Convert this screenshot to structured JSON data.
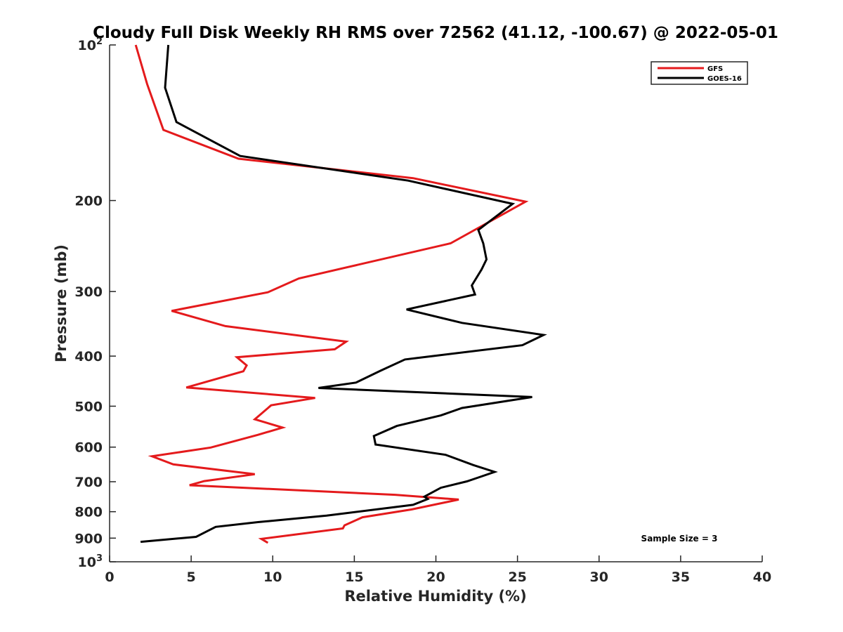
{
  "chart_data": {
    "type": "line",
    "title": "Cloudy Full Disk Weekly RH RMS over 72562 (41.12, -100.67) @ 2022-05-01",
    "xlabel": "Relative Humidity (%)",
    "ylabel": "Pressure (mb)",
    "xlim": [
      0,
      40
    ],
    "ylim": [
      100,
      1000
    ],
    "y_scale": "log",
    "y_reversed": true,
    "grid": false,
    "legend_position": "top-right",
    "x_ticks": [
      0,
      5,
      10,
      15,
      20,
      25,
      30,
      35,
      40
    ],
    "y_ticks": [
      {
        "value": 100,
        "base": "10",
        "exp": "2"
      },
      {
        "value": 200,
        "label": "200"
      },
      {
        "value": 300,
        "label": "300"
      },
      {
        "value": 400,
        "label": "400"
      },
      {
        "value": 500,
        "label": "500"
      },
      {
        "value": 600,
        "label": "600"
      },
      {
        "value": 700,
        "label": "700"
      },
      {
        "value": 800,
        "label": "800"
      },
      {
        "value": 900,
        "label": "900"
      },
      {
        "value": 1000,
        "base": "10",
        "exp": "3"
      }
    ],
    "series": [
      {
        "name": "GFS",
        "color": "#e41a1c",
        "x": [
          1.6,
          2.3,
          3.3,
          7.9,
          18.6,
          25.5,
          20.9,
          11.6,
          9.7,
          3.8,
          7.1,
          14.5,
          13.8,
          7.8,
          8.4,
          8.2,
          4.7,
          12.6,
          9.9,
          8.9,
          10.6,
          9.1,
          6.2,
          2.6,
          3.9,
          8.9,
          5.8,
          4.9,
          17.5,
          21.4,
          18.5,
          15.5,
          14.4,
          14.3,
          9.3,
          9.7
        ],
        "y": [
          100,
          119,
          146,
          166,
          181,
          201,
          242,
          283,
          301,
          327,
          350,
          375,
          388,
          402,
          417,
          428,
          460,
          482,
          498,
          530,
          550,
          568,
          601,
          625,
          648,
          677,
          698,
          711,
          742,
          758,
          792,
          820,
          850,
          862,
          903,
          919
        ]
      },
      {
        "name": "GOES-16",
        "color": "#000000",
        "x": [
          3.6,
          3.4,
          4.1,
          8.0,
          18.3,
          24.7,
          22.6,
          22.9,
          23.1,
          22.8,
          22.2,
          22.4,
          18.2,
          21.6,
          26.6,
          25.3,
          18.1,
          16.6,
          15.1,
          12.8,
          25.9,
          21.6,
          20.3,
          17.6,
          16.2,
          16.3,
          20.6,
          22.3,
          23.6,
          22.6,
          21.9,
          20.3,
          19.3,
          19.5,
          18.6,
          13.3,
          9.1,
          6.5,
          6.0,
          5.3,
          1.9
        ],
        "y": [
          100,
          121,
          141,
          164,
          183,
          203,
          228,
          242,
          260,
          272,
          292,
          304,
          325,
          345,
          364,
          381,
          406,
          427,
          450,
          461,
          480,
          504,
          521,
          546,
          571,
          593,
          621,
          650,
          670,
          687,
          699,
          719,
          748,
          756,
          776,
          814,
          838,
          856,
          872,
          895,
          915
        ]
      }
    ],
    "annotations": [
      "Sample Size = 3"
    ]
  }
}
